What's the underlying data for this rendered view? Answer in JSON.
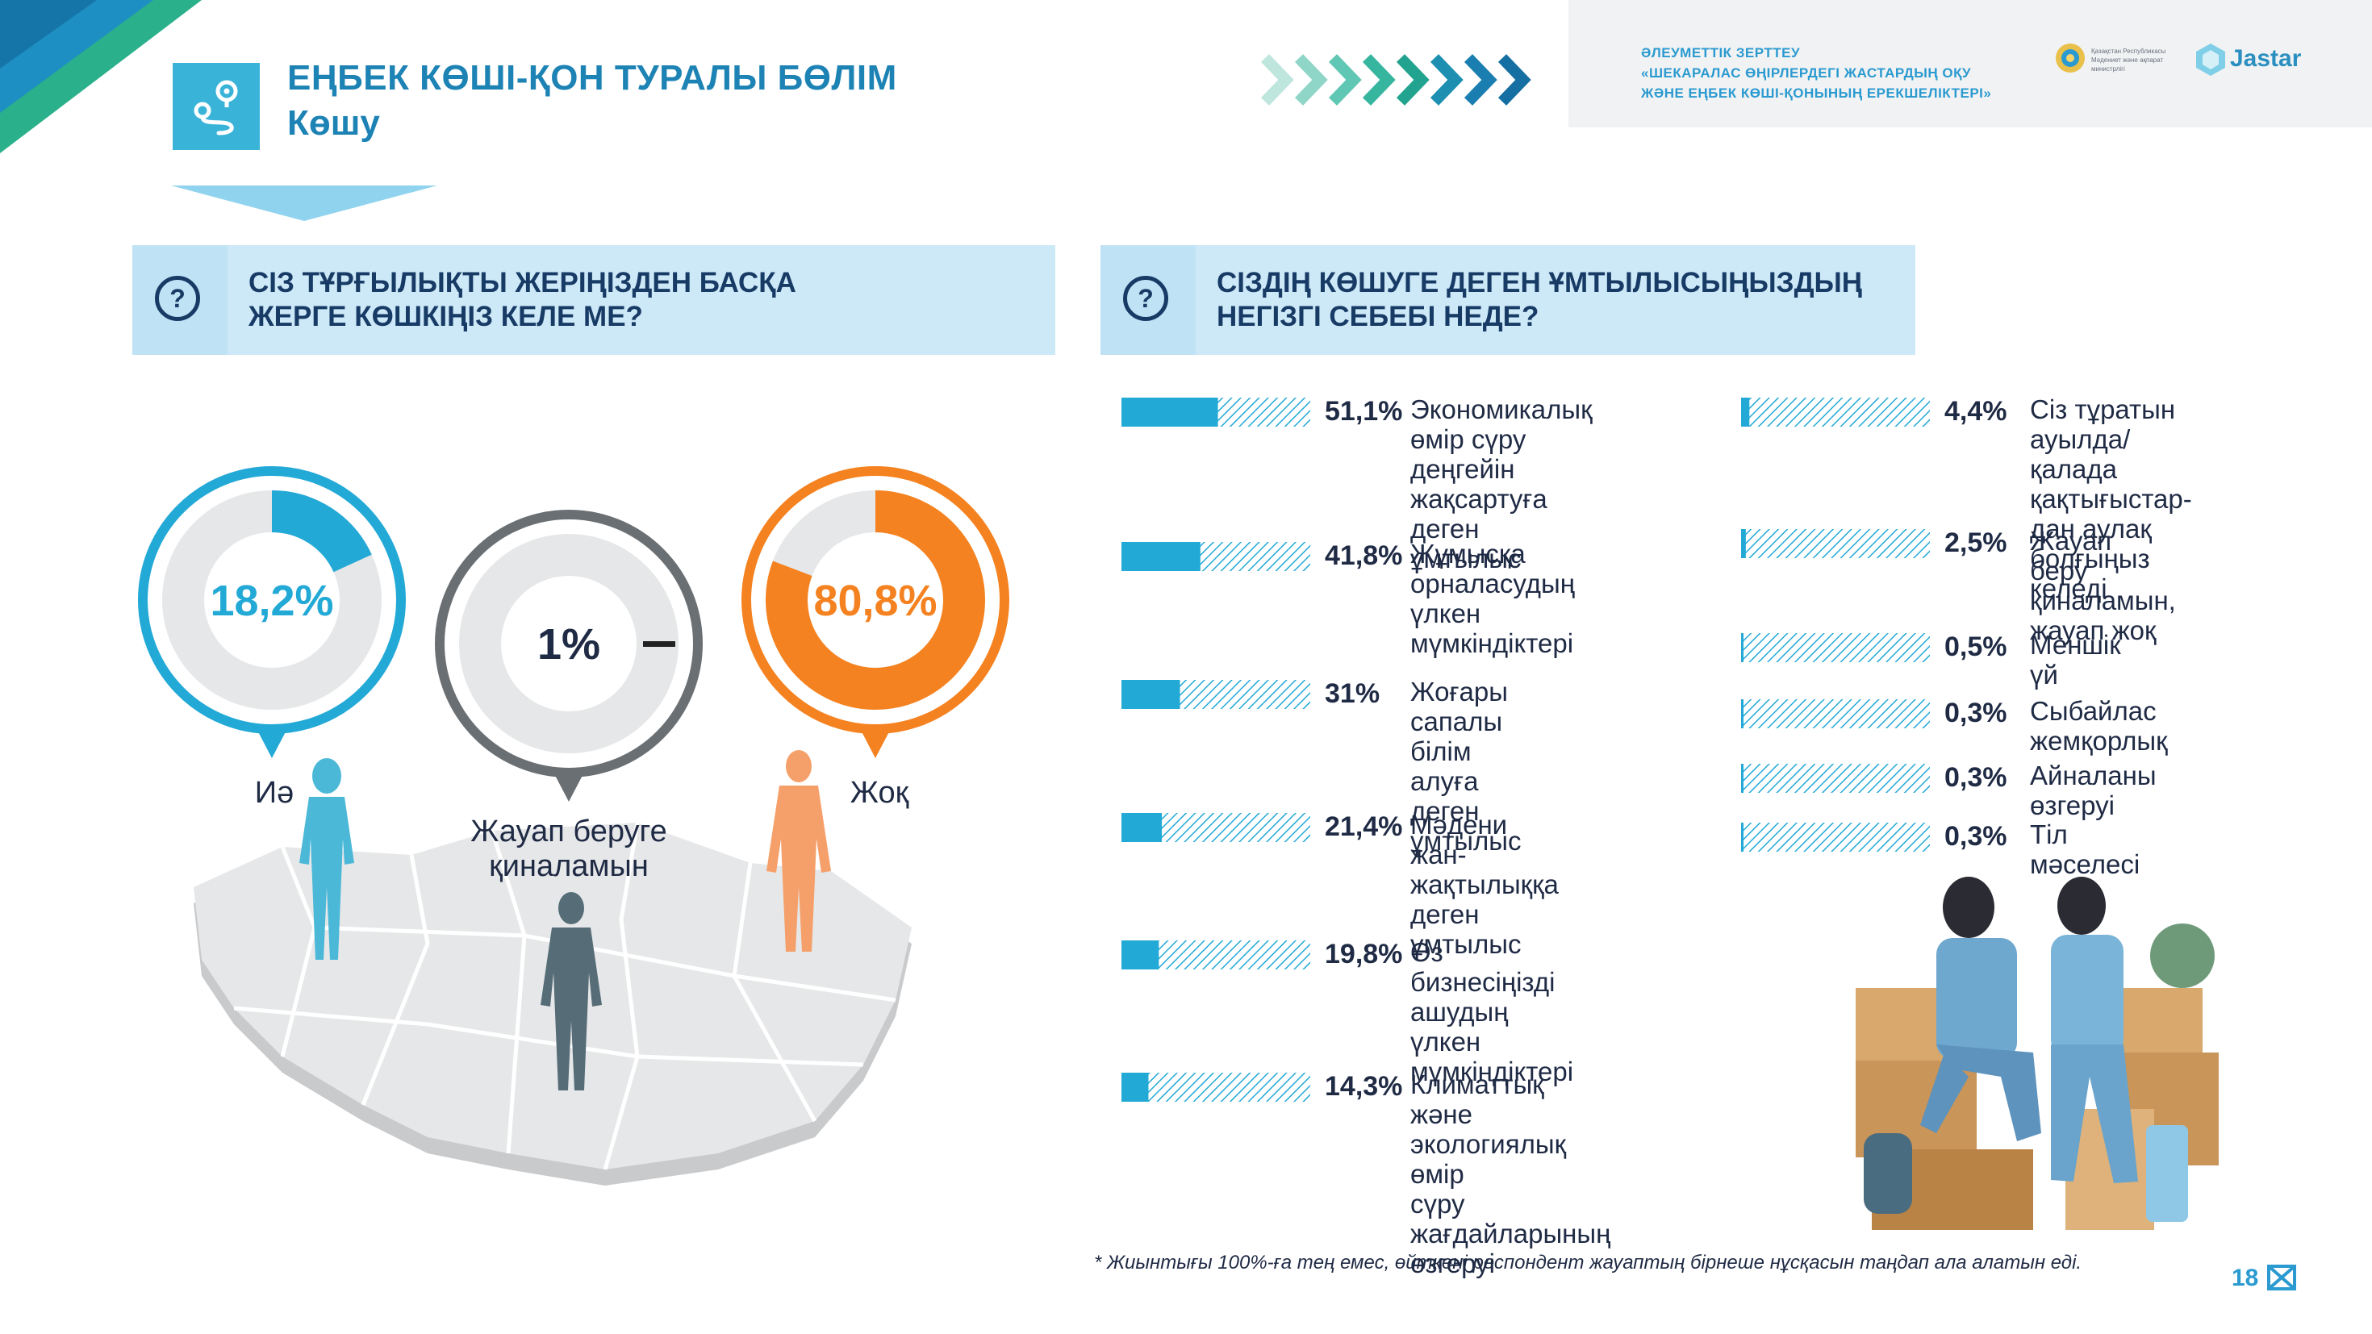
{
  "header": {
    "section_title": "ЕҢБЕК КӨШІ-ҚОН ТУРАЛЫ БӨЛІМ",
    "section_subtitle": "Көшу",
    "banner_line1": "ӘЛЕУМЕТТІК ЗЕРТТЕУ",
    "banner_line2": "«ШЕКАРАЛАС ӨҢІРЛЕРДЕГІ ЖАСТАРДЫҢ ОҚУ",
    "banner_line3": "ЖӘНЕ ЕҢБЕК КӨШІ-ҚОНЫНЫҢ ЕРЕКШЕЛІКТЕРІ»",
    "ministry_text": "Қазақстан Республикасы Мәдениет және ақпарат министрлігі",
    "logo_text": "Jastar"
  },
  "questions": {
    "q1_line1": "СІЗ ТҰРҒЫЛЫҚТЫ ЖЕРІҢІЗДЕН БАСҚА",
    "q1_line2": "ЖЕРГЕ КӨШКІҢІЗ КЕЛЕ МЕ?",
    "q2_line1": "СІЗДІҢ КӨШУГЕ ДЕГЕН ҰМТЫЛЫСЫҢЫЗДЫҢ",
    "q2_line2": "НЕГІЗГІ СЕБЕБІ НЕДЕ?",
    "q_mark": "?"
  },
  "colors": {
    "accent_blue": "#22a9d6",
    "accent_orange": "#f58220",
    "neutral_gray": "#6a6f73",
    "title_blue": "#1d83b4",
    "navy": "#183b66"
  },
  "chart_data": [
    {
      "type": "pie",
      "title": "СІЗ ТҰРҒЫЛЫҚТЫ ЖЕРІҢІЗДЕН БАСҚА ЖЕРГЕ КӨШКІҢІЗ КЕЛЕ МЕ?",
      "slices": [
        {
          "label": "Иә",
          "value": 18.2,
          "display": "18,2%",
          "color": "#22a9d6"
        },
        {
          "label": "Жауап беруге қиналамын",
          "value": 1,
          "display": "1%",
          "color": "#6a6f73"
        },
        {
          "label": "Жоқ",
          "value": 80.8,
          "display": "80,8%",
          "color": "#f58220"
        }
      ]
    },
    {
      "type": "bar",
      "title": "СІЗДІҢ КӨШУГЕ ДЕГЕН ҰМТЫЛЫСЫҢЫЗДЫҢ НЕГІЗГІ СЕБЕБІ НЕДЕ?",
      "bars": [
        {
          "value": 51.1,
          "display": "51,1%",
          "label": "Экономикалық\n өмір сүру деңгейін\nжақсартуға деген\nұмтылыс"
        },
        {
          "value": 41.8,
          "display": "41,8%",
          "label": "Жұмысқа\nорналасудың\nүлкен мүмкіндіктері"
        },
        {
          "value": 31,
          "display": "31%",
          "label": "Жоғары сапалы\nбілім алуға деген\nұмтылыс"
        },
        {
          "value": 21.4,
          "display": "21,4%",
          "label": "Мәдени\nжан-жақтылыққа\nдеген ұмтылыс"
        },
        {
          "value": 19.8,
          "display": "19,8%",
          "label": "Өз бизнесіңізді\nашудың үлкен\nмүмкіндіктері"
        },
        {
          "value": 14.3,
          "display": "14,3%",
          "label": "Климаттық және\nэкологиялық өмір\nсүру жағдайларының\nөзгеруі"
        },
        {
          "value": 4.4,
          "display": "4,4%",
          "label": "Сіз тұратын ауылда/\nқалада қақтығыстар-\nдан аулақ болғыңыз\nкеледі"
        },
        {
          "value": 2.5,
          "display": "2,5%",
          "label": "Жауап беру\nқиналамын,\nжауап жоқ"
        },
        {
          "value": 0.5,
          "display": "0,5%",
          "label": "Меншік үй"
        },
        {
          "value": 0.3,
          "display": "0,3%",
          "label": "Сыбайлас жемқорлық"
        },
        {
          "value": 0.3,
          "display": "0,3%",
          "label": "Айналаны өзгеруі"
        },
        {
          "value": 0.3,
          "display": "0,3%",
          "label": "Тіл мәселесі"
        }
      ]
    }
  ],
  "footnote": "* Жиынтығы  100%-ға тең емес, өйткені респондент жауаптың бірнеше нұсқасын таңдап ала алатын еді.",
  "page_number": "18"
}
